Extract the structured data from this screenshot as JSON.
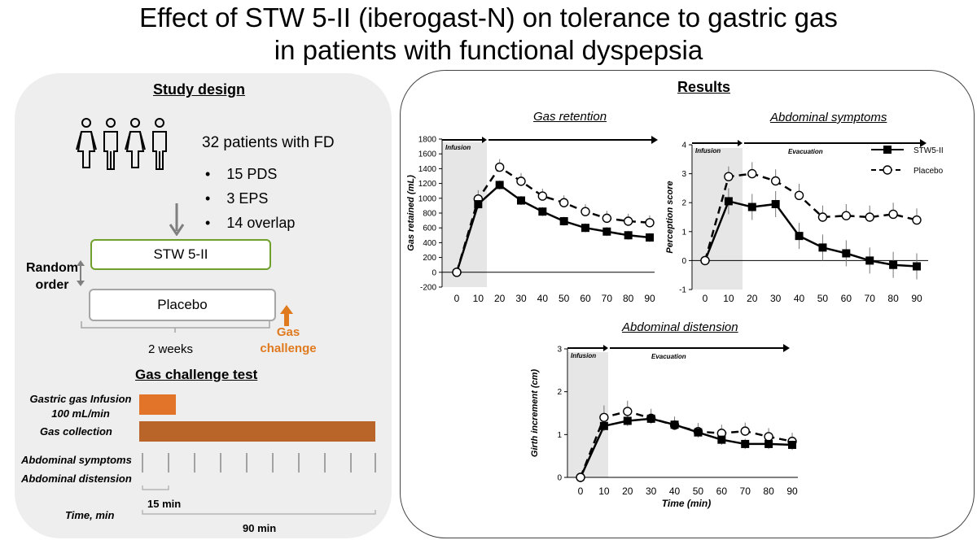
{
  "title_line1": "Effect of STW 5-II (iberogast-N) on tolerance to gastric gas",
  "title_line2": "in patients with functional dyspepsia",
  "study": {
    "heading": "Study design",
    "patients": "32 patients with FD",
    "bullets": [
      "15 PDS",
      "3 EPS",
      "14 overlap"
    ],
    "bullet_char": "•",
    "arm1": "STW 5-II",
    "arm2": "Placebo",
    "random_line1": "Random",
    "random_line2": "order",
    "duration": "2 weeks",
    "gas_line1": "Gas",
    "gas_line2": "challenge"
  },
  "test": {
    "heading": "Gas challenge test",
    "infusion_line1": "Gastric gas Infusion",
    "infusion_line2": "100 mL/min",
    "collection": "Gas collection",
    "symptoms": "Abdominal symptoms",
    "distension": "Abdominal distension",
    "interval": "15 min",
    "time_label": "Time, min",
    "total": "90 min"
  },
  "results": {
    "heading": "Results"
  },
  "colors": {
    "arm1_border": "#70a02c",
    "arm2_border": "#a6a6a6",
    "gas_orange": "#e07a1f",
    "infusion_bar": "#e2742a",
    "collection_bar": "#b9652a",
    "infusion_shade": "#e6e6e6"
  },
  "chart_data": [
    {
      "type": "line",
      "title": "Gas retention",
      "ylabel": "Gas retained (mL)",
      "xlabel": "",
      "x": [
        0,
        10,
        20,
        30,
        40,
        50,
        60,
        70,
        80,
        90
      ],
      "x_ticks": [
        "0",
        "10",
        "20",
        "30",
        "40",
        "50",
        "60",
        "70",
        "80",
        "90"
      ],
      "y_ticks": [
        "-200",
        "0",
        "200",
        "400",
        "600",
        "800",
        "1000",
        "1200",
        "1400",
        "1600",
        "1800"
      ],
      "ylim": [
        -200,
        1800
      ],
      "infusion_label": "Infusion",
      "phase_label": "",
      "series": [
        {
          "name": "STW5-II",
          "values": [
            0,
            920,
            1180,
            970,
            820,
            690,
            600,
            550,
            500,
            470
          ],
          "err": [
            0,
            60,
            60,
            60,
            60,
            60,
            60,
            60,
            60,
            60
          ]
        },
        {
          "name": "Placebo",
          "values": [
            0,
            990,
            1420,
            1230,
            1030,
            940,
            820,
            730,
            690,
            670
          ],
          "err": [
            0,
            120,
            110,
            110,
            100,
            100,
            100,
            100,
            100,
            100
          ]
        }
      ],
      "legend": false
    },
    {
      "type": "line",
      "title": "Abdominal symptoms",
      "ylabel": "Perception score",
      "xlabel": "",
      "x": [
        0,
        10,
        20,
        30,
        40,
        50,
        60,
        70,
        80,
        90
      ],
      "x_ticks": [
        "0",
        "10",
        "20",
        "30",
        "40",
        "50",
        "60",
        "70",
        "80",
        "90"
      ],
      "y_ticks": [
        "-1",
        "0",
        "1",
        "2",
        "3",
        "4"
      ],
      "ylim": [
        -1,
        4
      ],
      "infusion_label": "Infusion",
      "phase_label": "Evacuation",
      "series": [
        {
          "name": "STW5-II",
          "values": [
            0,
            2.05,
            1.85,
            1.95,
            0.85,
            0.45,
            0.25,
            0.0,
            -0.15,
            -0.2
          ],
          "err": [
            0,
            0.45,
            0.45,
            0.45,
            0.45,
            0.45,
            0.45,
            0.45,
            0.45,
            0.45
          ]
        },
        {
          "name": "Placebo",
          "values": [
            0,
            2.9,
            3.0,
            2.75,
            2.25,
            1.5,
            1.55,
            1.5,
            1.6,
            1.4
          ],
          "err": [
            0,
            0.35,
            0.4,
            0.4,
            0.4,
            0.4,
            0.4,
            0.4,
            0.4,
            0.4
          ]
        }
      ],
      "legend": true
    },
    {
      "type": "line",
      "title": "Abdominal distension",
      "ylabel": "Girth increment (cm)",
      "xlabel": "Time (min)",
      "x": [
        0,
        10,
        20,
        30,
        40,
        50,
        60,
        70,
        80,
        90
      ],
      "x_ticks": [
        "0",
        "10",
        "20",
        "30",
        "40",
        "50",
        "60",
        "70",
        "80",
        "90"
      ],
      "y_ticks": [
        "0",
        "1",
        "2",
        "3"
      ],
      "ylim": [
        0,
        3
      ],
      "infusion_label": "Infusion",
      "phase_label": "Evacuation",
      "series": [
        {
          "name": "STW5-II",
          "values": [
            0,
            1.2,
            1.32,
            1.37,
            1.23,
            1.05,
            0.88,
            0.78,
            0.78,
            0.76
          ],
          "err": [
            0,
            0.12,
            0.12,
            0.12,
            0.12,
            0.12,
            0.12,
            0.12,
            0.12,
            0.12
          ]
        },
        {
          "name": "Placebo",
          "values": [
            0,
            1.4,
            1.54,
            1.38,
            1.22,
            1.07,
            1.03,
            1.08,
            0.95,
            0.84
          ],
          "err": [
            0,
            0.28,
            0.25,
            0.22,
            0.2,
            0.2,
            0.2,
            0.2,
            0.2,
            0.2
          ]
        }
      ],
      "legend": false
    }
  ]
}
